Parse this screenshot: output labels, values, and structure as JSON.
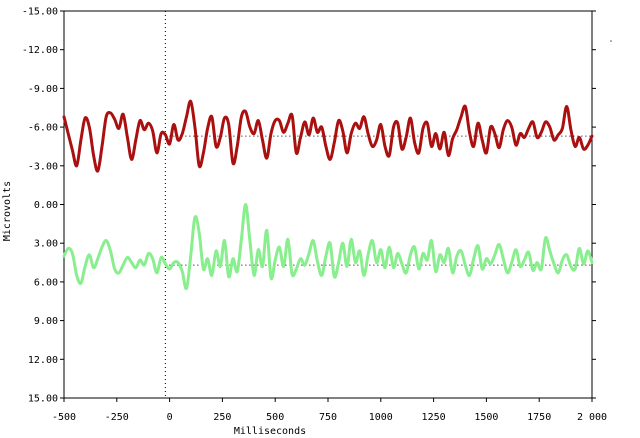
{
  "chart_data": {
    "type": "line",
    "title": "",
    "xlabel": "Milliseconds",
    "ylabel": "Microvolts",
    "xlim": [
      -500,
      2000
    ],
    "ylim": [
      -15,
      15
    ],
    "y_inverted": true,
    "grid": false,
    "x_ticks": [
      "-500",
      "-250",
      "0",
      "250",
      "500",
      "750",
      "1000",
      "1250",
      "1500",
      "1750",
      "2 000"
    ],
    "y_ticks": [
      "-15.00",
      "-12.00",
      "-9.00",
      "-6.00",
      "-3.00",
      "0.00",
      "3.00",
      "6.00",
      "9.00",
      "12.00",
      "15.00"
    ],
    "stimulus_onset_x": -20,
    "series": [
      {
        "color": "#aa1010",
        "baseline": -5.3,
        "x": [
          -500,
          -480,
          -460,
          -440,
          -420,
          -400,
          -380,
          -360,
          -340,
          -320,
          -300,
          -280,
          -260,
          -240,
          -220,
          -200,
          -180,
          -160,
          -140,
          -120,
          -100,
          -80,
          -60,
          -40,
          -20,
          0,
          20,
          40,
          60,
          80,
          100,
          120,
          140,
          160,
          180,
          200,
          220,
          240,
          260,
          280,
          300,
          320,
          340,
          360,
          380,
          400,
          420,
          440,
          460,
          480,
          500,
          520,
          540,
          560,
          580,
          600,
          620,
          640,
          660,
          680,
          700,
          720,
          740,
          760,
          780,
          800,
          820,
          840,
          860,
          880,
          900,
          920,
          940,
          960,
          980,
          1000,
          1020,
          1040,
          1060,
          1080,
          1100,
          1120,
          1140,
          1160,
          1180,
          1200,
          1220,
          1240,
          1260,
          1280,
          1300,
          1320,
          1340,
          1360,
          1380,
          1400,
          1420,
          1440,
          1460,
          1480,
          1500,
          1520,
          1540,
          1560,
          1580,
          1600,
          1620,
          1640,
          1660,
          1680,
          1700,
          1720,
          1740,
          1760,
          1780,
          1800,
          1820,
          1840,
          1860,
          1880,
          1900,
          1920,
          1940,
          1960,
          1980,
          2000
        ],
        "values": [
          -6.8,
          -5.5,
          -4.2,
          -3.0,
          -5.0,
          -6.7,
          -6.0,
          -3.8,
          -2.6,
          -4.5,
          -6.8,
          -7.1,
          -6.6,
          -5.9,
          -7.0,
          -5.2,
          -3.5,
          -5.0,
          -6.5,
          -5.8,
          -6.3,
          -5.7,
          -4.0,
          -5.5,
          -5.4,
          -4.7,
          -6.2,
          -5.0,
          -5.5,
          -6.8,
          -8.0,
          -6.0,
          -3.0,
          -4.0,
          -5.9,
          -6.8,
          -4.5,
          -5.2,
          -6.7,
          -6.2,
          -3.2,
          -4.5,
          -6.8,
          -7.2,
          -6.0,
          -5.5,
          -6.5,
          -5.0,
          -3.6,
          -5.5,
          -6.5,
          -6.5,
          -5.6,
          -6.3,
          -6.9,
          -4.0,
          -5.2,
          -6.4,
          -5.4,
          -6.7,
          -5.6,
          -6.0,
          -4.5,
          -3.5,
          -4.8,
          -6.5,
          -5.7,
          -4.0,
          -5.5,
          -6.3,
          -5.9,
          -6.8,
          -5.5,
          -4.5,
          -5.0,
          -6.2,
          -4.5,
          -3.8,
          -6.0,
          -6.3,
          -4.3,
          -5.2,
          -6.7,
          -4.8,
          -4.0,
          -5.9,
          -6.3,
          -4.5,
          -5.5,
          -4.3,
          -5.6,
          -3.8,
          -5.1,
          -5.8,
          -6.8,
          -7.6,
          -5.6,
          -4.5,
          -6.3,
          -5.0,
          -4.0,
          -6.0,
          -5.5,
          -4.4,
          -5.8,
          -6.5,
          -6.0,
          -4.6,
          -5.5,
          -5.2,
          -5.9,
          -6.4,
          -5.2,
          -5.6,
          -6.4,
          -6.0,
          -5.0,
          -5.4,
          -5.9,
          -7.6,
          -5.8,
          -4.5,
          -5.2,
          -4.3,
          -4.6,
          -5.3
        ]
      },
      {
        "color": "#88ee8e",
        "baseline": 4.7,
        "x": [
          -500,
          -480,
          -460,
          -440,
          -420,
          -400,
          -380,
          -360,
          -340,
          -320,
          -300,
          -280,
          -260,
          -240,
          -220,
          -200,
          -180,
          -160,
          -140,
          -120,
          -100,
          -80,
          -60,
          -40,
          -20,
          0,
          20,
          40,
          60,
          80,
          100,
          120,
          140,
          160,
          180,
          200,
          220,
          240,
          260,
          280,
          300,
          320,
          340,
          360,
          380,
          400,
          420,
          440,
          460,
          480,
          500,
          520,
          540,
          560,
          580,
          600,
          620,
          640,
          660,
          680,
          700,
          720,
          740,
          760,
          780,
          800,
          820,
          840,
          860,
          880,
          900,
          920,
          940,
          960,
          980,
          1000,
          1020,
          1040,
          1060,
          1080,
          1100,
          1120,
          1140,
          1160,
          1180,
          1200,
          1220,
          1240,
          1260,
          1280,
          1300,
          1320,
          1340,
          1360,
          1380,
          1400,
          1420,
          1440,
          1460,
          1480,
          1500,
          1520,
          1540,
          1560,
          1580,
          1600,
          1620,
          1640,
          1660,
          1680,
          1700,
          1720,
          1740,
          1760,
          1780,
          1800,
          1820,
          1840,
          1860,
          1880,
          1900,
          1920,
          1940,
          1960,
          1980,
          2000
        ],
        "values": [
          4.0,
          3.4,
          3.8,
          5.5,
          6.1,
          4.8,
          3.9,
          4.9,
          4.2,
          3.3,
          2.8,
          3.6,
          5.0,
          5.3,
          4.7,
          4.1,
          4.5,
          4.9,
          4.3,
          4.7,
          3.8,
          4.2,
          5.3,
          4.1,
          4.6,
          5.0,
          4.5,
          4.5,
          5.2,
          6.5,
          4.0,
          1.0,
          2.2,
          5.0,
          4.2,
          5.5,
          3.6,
          4.8,
          2.8,
          5.6,
          4.2,
          5.2,
          2.7,
          0.0,
          2.8,
          5.5,
          3.5,
          4.8,
          2.0,
          5.7,
          4.3,
          3.3,
          4.8,
          2.7,
          5.4,
          5.0,
          4.2,
          4.7,
          3.8,
          2.8,
          4.4,
          5.5,
          4.0,
          3.0,
          5.6,
          4.5,
          3.0,
          4.8,
          2.7,
          4.5,
          3.6,
          5.5,
          3.9,
          2.8,
          4.5,
          3.5,
          4.9,
          3.3,
          4.9,
          3.8,
          4.6,
          5.3,
          3.9,
          3.3,
          5.0,
          3.8,
          4.3,
          2.8,
          5.2,
          3.9,
          4.5,
          3.4,
          5.3,
          4.0,
          3.6,
          4.7,
          5.5,
          4.2,
          3.2,
          5.0,
          4.2,
          4.6,
          3.9,
          3.1,
          4.2,
          5.3,
          4.5,
          3.5,
          4.8,
          4.3,
          3.7,
          5.1,
          4.5,
          5.0,
          2.6,
          3.6,
          4.6,
          5.3,
          4.3,
          3.9,
          4.8,
          5.0,
          3.4,
          4.6,
          3.6,
          4.5
        ]
      }
    ]
  }
}
